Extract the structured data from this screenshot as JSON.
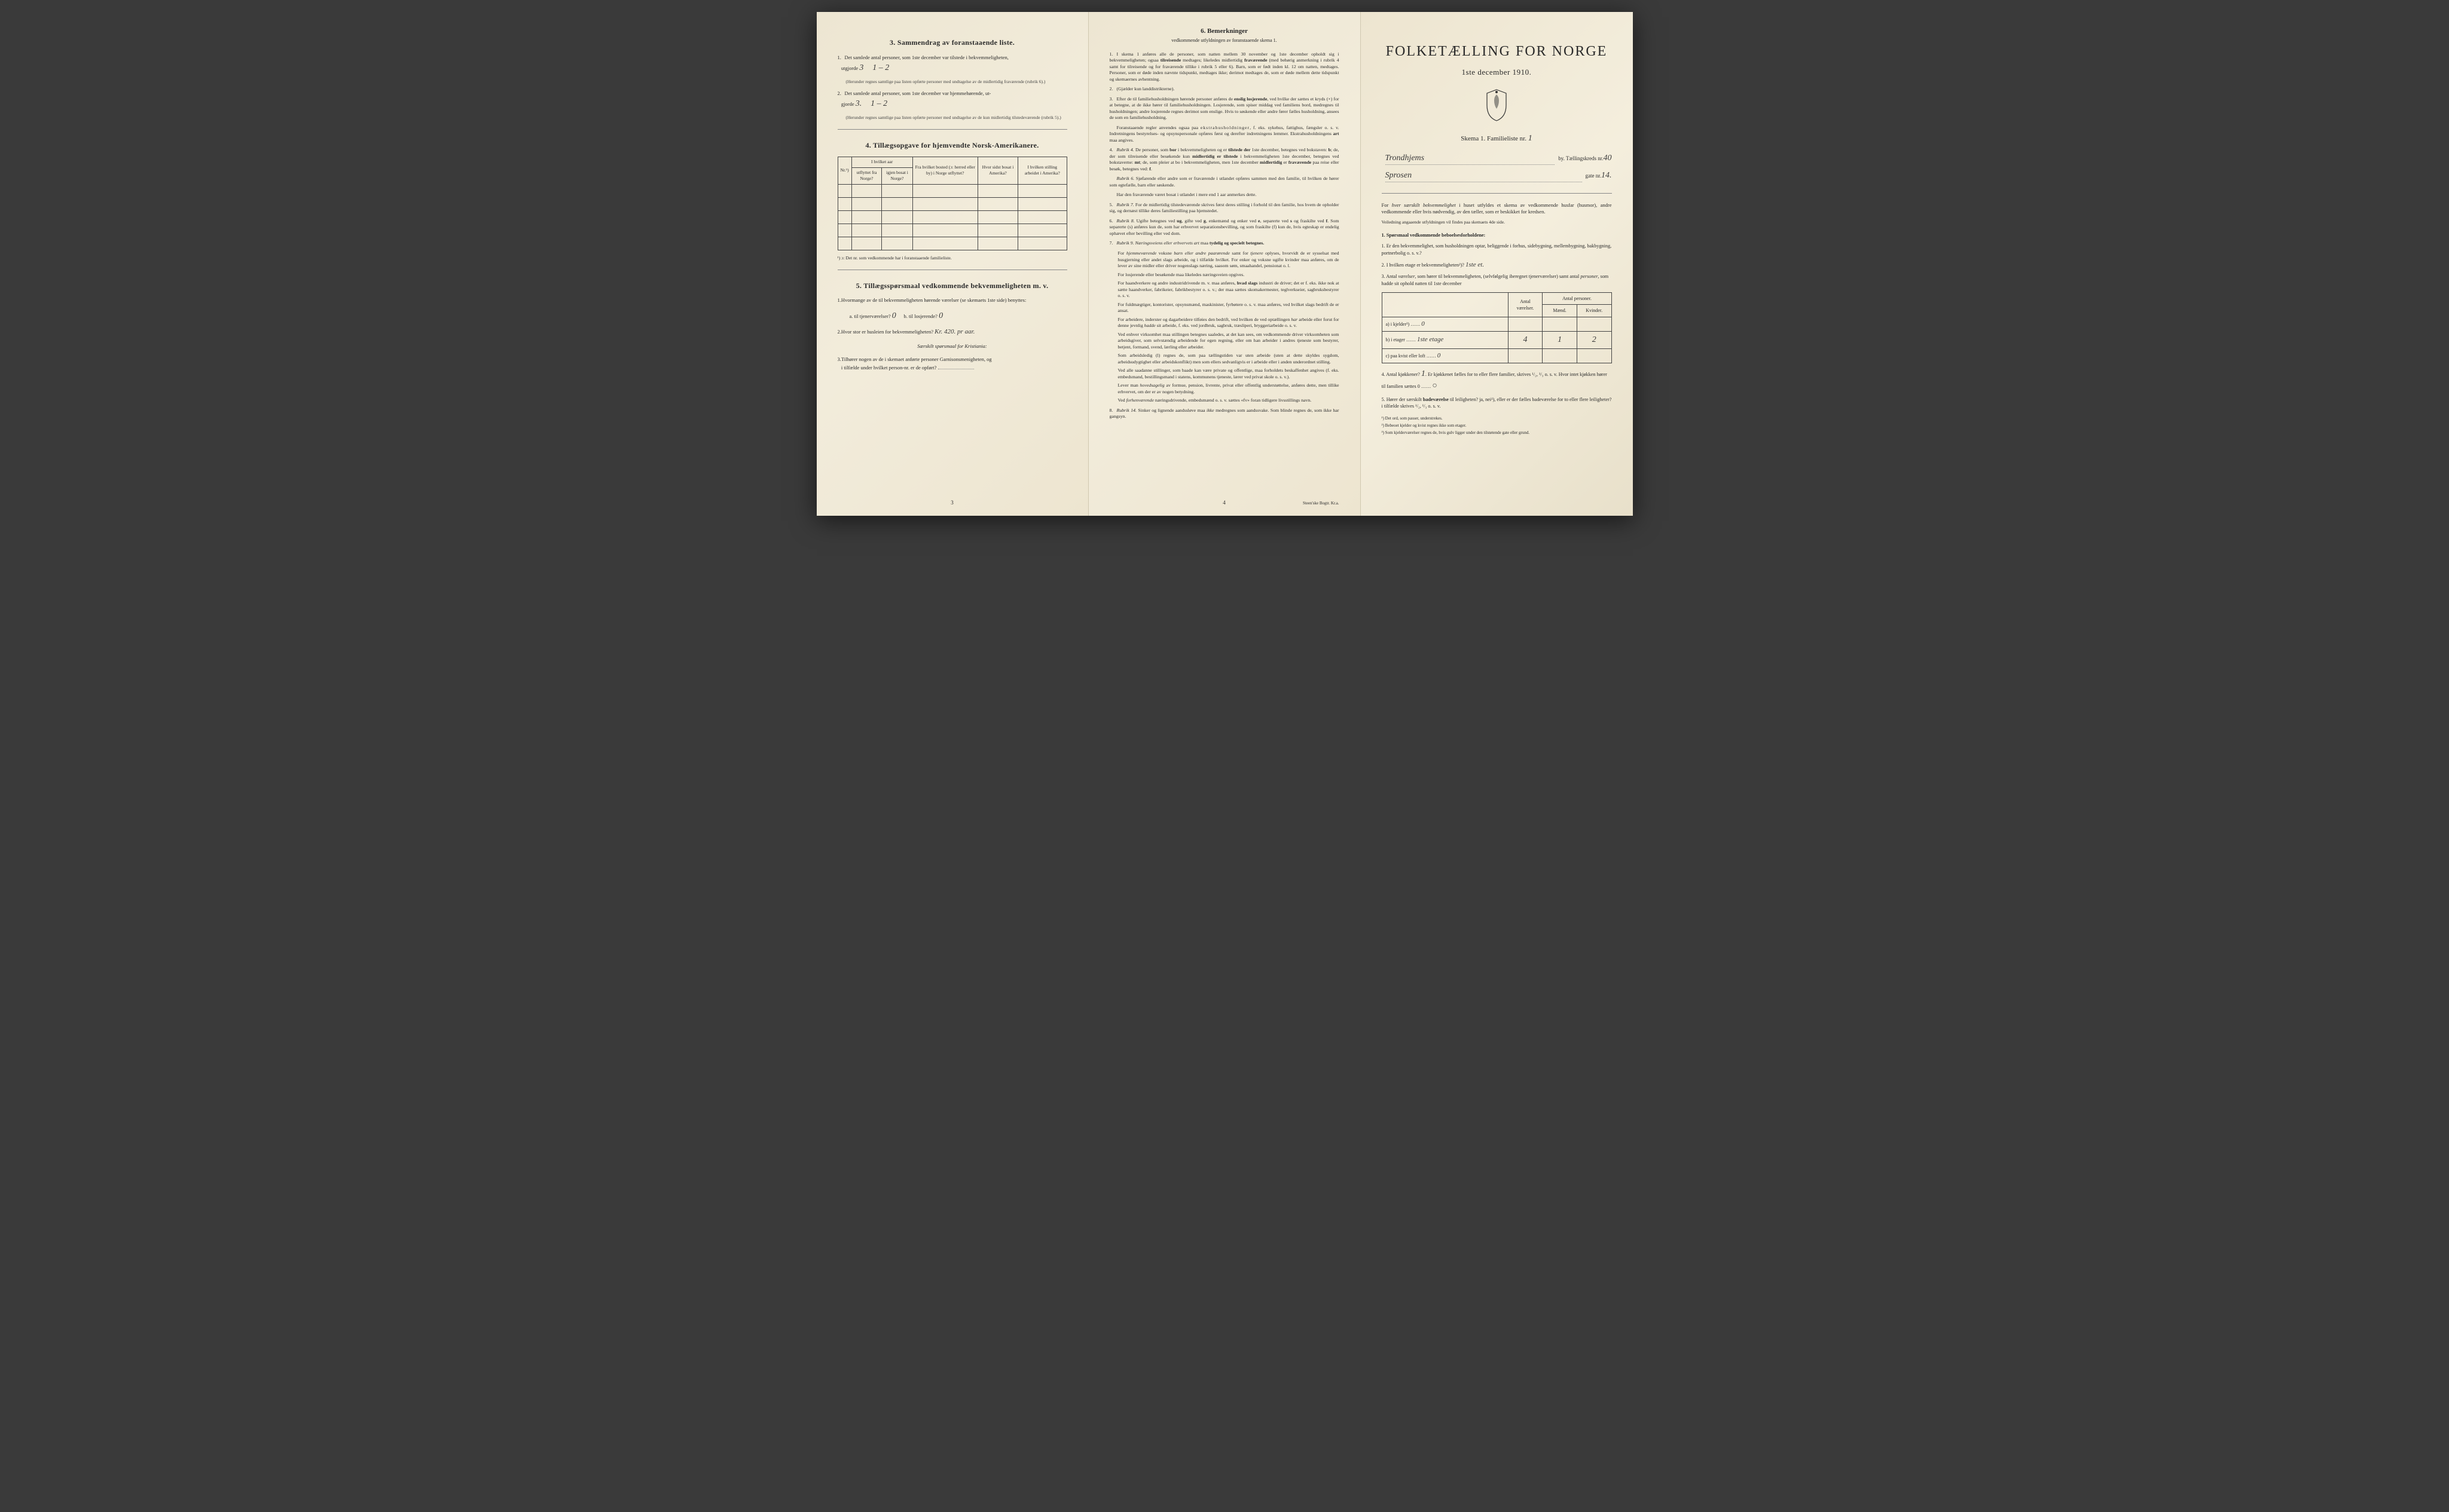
{
  "colors": {
    "bg": "#3a3a3a",
    "paper": "#f0ead8",
    "ink": "#2a2a2a",
    "rule": "#888",
    "hw": "#3a3a3a"
  },
  "left": {
    "s3": {
      "title": "3.   Sammendrag av foranstaaende liste.",
      "q1": "Det samlede antal personer, som 1ste december var tilstede i bekvemmeligheten,",
      "q1b": "utgjorde",
      "hw1a": "3",
      "hw1b": "1 – 2",
      "note1": "(Herunder regnes samtlige paa listen opførte personer med undtagelse av de midlertidig fraværende (rubrik 6).)",
      "q2": "Det samlede antal personer, som 1ste december var hjemmehørende, ut-",
      "q2b": "gjorde",
      "hw2a": "3.",
      "hw2b": "1 – 2",
      "note2": "(Herunder regnes samtlige paa listen opførte personer med undtagelse av de kun midlertidig tilstedeværende (rubrik 5).)"
    },
    "s4": {
      "title": "4.   Tillægsopgave for hjemvendte Norsk-Amerikanere.",
      "table": {
        "headers": {
          "nr": "Nr.¹)",
          "aar": "I hvilket aar",
          "ut": "utflyttet fra Norge?",
          "igjen": "igjen bosat i Norge?",
          "bosted": "Fra hvilket bosted (ɔ: herred eller by) i Norge utflyttet?",
          "sidst": "Hvor sidst bosat i Amerika?",
          "stilling": "I hvilken stilling arbeidet i Amerika?"
        },
        "empty_rows": 5
      },
      "footnote": "¹) ɔ: Det nr. som vedkommende har i foranstaaende familieliste."
    },
    "s5": {
      "title": "5.   Tillægsspørsmaal vedkommende bekvemmeligheten m. v.",
      "q1": "Hvormange av de til bekvemmeligheten hørende værelser (se skemaets 1ste side) benyttes:",
      "q1a_lab": "a. til tjenerværelser?",
      "q1a_hw": "0",
      "q1b_lab": "b. til losjerende?",
      "q1b_hw": "0",
      "q2": "Hvor stor er husleien for bekvemmeligheten?",
      "q2_hw": "Kr. 420. pr aar.",
      "sub": "Særskilt spørsmaal for Kristiania:",
      "q3": "Tilhører nogen av de i skemaet anførte personer Garnisonsmenigheten, og",
      "q3b": "i tilfælde under hvilket person-nr. er de opført?"
    },
    "page_num": "3"
  },
  "mid": {
    "title": "6.   Bemerkninger",
    "sub": "vedkommende utfyldningen av foranstaaende skema 1.",
    "items": [
      {
        "n": "1.",
        "t": "I skema 1 anføres alle de personer, som natten mellem 30 november og 1ste december opholdt sig i bekvemmeligheten; ogsaa <b>tilreisende</b> medtages; likeledes midlertidig <b>fraværende</b> (med behørig anmerkning i rubrik 4 samt for tilreisende og for fraværende tillike i rubrik 5 eller 6). Barn, som er født inden kl. 12 om natten, medtages. Personer, som er døde inden nævnte tidspunkt, medtages ikke; derimot medtages de, som er døde mellem dette tidspunkt og skemaernes avhentning."
      },
      {
        "n": "2.",
        "t": "(Gjælder kun landdistrikterne)."
      },
      {
        "n": "3.",
        "t": "Efter de til familiehusholdningen hørende personer anføres de <b>enslig losjerende</b>, ved hvilke der sættes et kryds (×) for at betegne, at de ikke hører til familiehusholdningen. Losjerende, som spiser middag ved familiens bord, medregnes til husholdningen; andre losjerende regnes derimot som enslige. Hvis to søskende eller andre fører fælles husholdning, ansees de som en familiehusholdning."
      },
      {
        "n": "",
        "t": "Foranstaaende regler anvendes ogsaa paa <span class='sp'>ekstrahusholdninger</span>, f. eks. sykehus, fattighus, fængsler o. s. v. Indretningens bestyrelses- og opsynspersonale opføres først og derefter indretningens lemmer. Ekstrahusholdningens <b>art</b> maa angives."
      },
      {
        "n": "4.",
        "t": "<i>Rubrik 4.</i> De personer, som <b>bor</b> i bekvemmeligheten og er <b>tilstede der</b> 1ste december, betegnes ved bokstaven: <b>b</b>; de, der som tilreisende eller besøkende kun <b>midlertidig er tilstede</b> i bekvemmeligheten 1ste december, betegnes ved bokstaverne: <b>mt</b>; de, som pleier at bo i bekvemmeligheten, men 1ste december <b>midlertidig</b> er <b>fraværende</b> paa reise eller besøk, betegnes ved: <b>f</b>."
      },
      {
        "n": "",
        "t": "<i>Rubrik 6.</i> Sjøfarende eller andre som er fraværende i utlandet opføres sammen med den familie, til hvilken de hører som egtefælle, barn eller søskende."
      },
      {
        "n": "",
        "t": "Har den fraværende været bosat i utlandet i mere end 1 aar anmerkes dette."
      },
      {
        "n": "5.",
        "t": "<i>Rubrik 7.</i> For de midlertidig tilstedeværende skrives først deres stilling i forhold til den familie, hos hvem de opholder sig, og dernæst tillike deres familiestilling paa hjemstedet."
      },
      {
        "n": "6.",
        "t": "<i>Rubrik 8.</i> Ugifte betegnes ved <b>ug</b>, gifte ved <b>g</b>, enkemænd og enker ved <b>e</b>, separerte ved <b>s</b> og fraskilte ved <b>f</b>. Som separerte (s) anføres kun de, som har erhvervet separationsbevilling, og som fraskilte (f) kun de, hvis egteskap er endelig ophævet efter bevilling eller ved dom."
      },
      {
        "n": "7.",
        "t": "<i>Rubrik 9.</i> <i>Næringsveiens eller erhvervets art</i> maa <b>tydelig og specielt betegnes.</b>"
      }
    ],
    "paras": [
      "For <i>hjemmeværende</i> voksne <i>barn eller andre paarørende</i> samt for <i>tjenere</i> oplyses, hvorvidt de er sysselsat med husgjerning eller andet slags arbeide, og i tilfælde hvilket. For enker og voksne ugifte kvinder maa anføres, om de lever av sine midler eller driver nogenslags næring, saasom søm, smaahandel, pensionat o. l.",
      "For losjerende eller besøkende maa likeledes næringsveien opgives.",
      "For haandverkere og andre industridrivende m. v. maa anføres, <b>hvad slags</b> industri de driver; det er f. eks. ikke nok at sætte haandverker, fabrikeier, fabrikbestyrer o. s. v.; der maa sættes skomakermester, teglverkseier, sagbruksbestyrer o. s. v.",
      "For fuldmægtiger, kontorister, opsynsmænd, maskinister, fyrbøtere o. s. v. maa anføres, ved hvilket slags bedrift de er ansat.",
      "For arbeidere, inderster og dagarbeidere tilføies den bedrift, ved hvilken de ved optællingen <i>har</i> arbeide eller forut for denne jevnlig <i>hadde</i> sit arbeide, f. eks. ved jordbruk, sagbruk, træsliperi, bryggeriarbeide o. s. v.",
      "Ved enhver virksomhet maa stillingen betegnes saaledes, at det kan sees, om vedkommende driver virksomheten som arbeidsgiver, som selvstændig arbeidende for egen regning, eller om han arbeider i andres tjeneste som bestyrer, betjent, formand, svend, lærling eller arbeider.",
      "Som arbeidsledig (l) regnes de, som paa tællingstiden var uten arbeide (uten at dette skyldes sygdom, arbeidsudygtighet eller arbeidskonflikt) men som ellers sedvanligvis er i arbeide eller i anden underordnet stilling.",
      "Ved alle saadanne stillinger, som baade kan være private og offentlige, maa forholdets beskaffenhet angives (f. eks. embedsmand, bestillingsmand i statens, kommunens tjeneste, lærer ved privat skole o. s. v.).",
      "Lever man <i>hovedsagelig</i> av formue, pension, livrente, privat eller offentlig understøttelse, anføres dette, men tillike erhvervet, om der er av nogen betydning.",
      "Ved <i>forhenværende</i> næringsdrivende, embedsmænd o. s. v. sættes «fv» foran tidligere livsstillings navn."
    ],
    "item8": {
      "n": "8.",
      "t": "<i>Rubrik 14.</i> Sinker og lignende aandssløve maa <i>ikke</i> medregnes som aandssvake. Som blinde regnes de, som ikke har gangsyn."
    },
    "page_num": "4",
    "printer": "Steen'ske Bogtr.  Kr.a."
  },
  "right": {
    "title": "FOLKETÆLLING FOR NORGE",
    "date": "1ste december 1910.",
    "skema": "Skema 1.   Familieliste nr.",
    "skema_hw": "1",
    "addr_by_hw": "Trondhjems",
    "addr_by_lab": "by.  Tællingskreds nr.",
    "addr_kreds_hw": "40",
    "addr_gate_hw": "Sprosen",
    "addr_gate_lab": "gate nr.",
    "addr_gatenr_hw": "14.",
    "intro": "For <i>hver særskilt bekvemmelighet</i> i huset utfyldes et skema av vedkommende husfar (husmor), andre vedkommende eller hvis nødvendig, av den tæller, som er beskikket for kredsen.",
    "intro_note": "Veiledning angaaende utfyldningen vil findes paa skemaets 4de side.",
    "q_head": "1.  Spørsmaal vedkommende beboelsesforholdene:",
    "q1": "Er den bekvemmelighet, som husholdningen optar, beliggende i forhus, sidebygning, mellembygning, bakbygning, portnerbolig o. s. v.?",
    "q2": "I hvilken etage er bekvemmeligheten²)?",
    "q2_hw": "1ste et.",
    "q3": "Antal <i>værelser</i>, som hører til bekvemmeligheten, (selvfølgelig iberegnet tjenerværelser) samt antal <i>personer</i>, som hadde sit ophold natten til 1ste december",
    "rooms": {
      "head_vaer": "Antal værelser.",
      "head_pers": "Antal personer.",
      "head_m": "Mænd.",
      "head_k": "Kvinder.",
      "rows": [
        {
          "lab": "a) i kjelder³)",
          "lab_hw": "0",
          "v": "",
          "m": "",
          "k": ""
        },
        {
          "lab": "b) i etager",
          "lab_hw": "1ste etage",
          "v": "4",
          "m": "1",
          "k": "2"
        },
        {
          "lab": "c) paa kvist eller loft",
          "lab_hw": "0",
          "v": "",
          "m": "",
          "k": ""
        }
      ]
    },
    "q4": "Antal kjøkkener?",
    "q4_hw": "1",
    "q4b": "Er kjøkkenet fælles for to eller flere familier, skrives ¹/₂, ¹/₃ o. s. v.  Hvor intet kjøkken hører til familien sættes 0 ……",
    "q4b_hw": "○",
    "q5": "Hører der særskilt <b>badeværelse</b> til leiligheten?  ja,  nei¹),  eller er der fælles badeværelse for to eller flere leiligheter?  i tilfælde skrives ¹/₂, ¹/₃ o. s. v.",
    "fns": [
      "¹) Det ord, som passer, understrekes.",
      "²) Bebeoet kjelder og kvist regnes ikke som etager.",
      "³) Som kjelderværelser regnes de, hvis gulv ligger under den tilstøtende gate eller grund."
    ]
  }
}
